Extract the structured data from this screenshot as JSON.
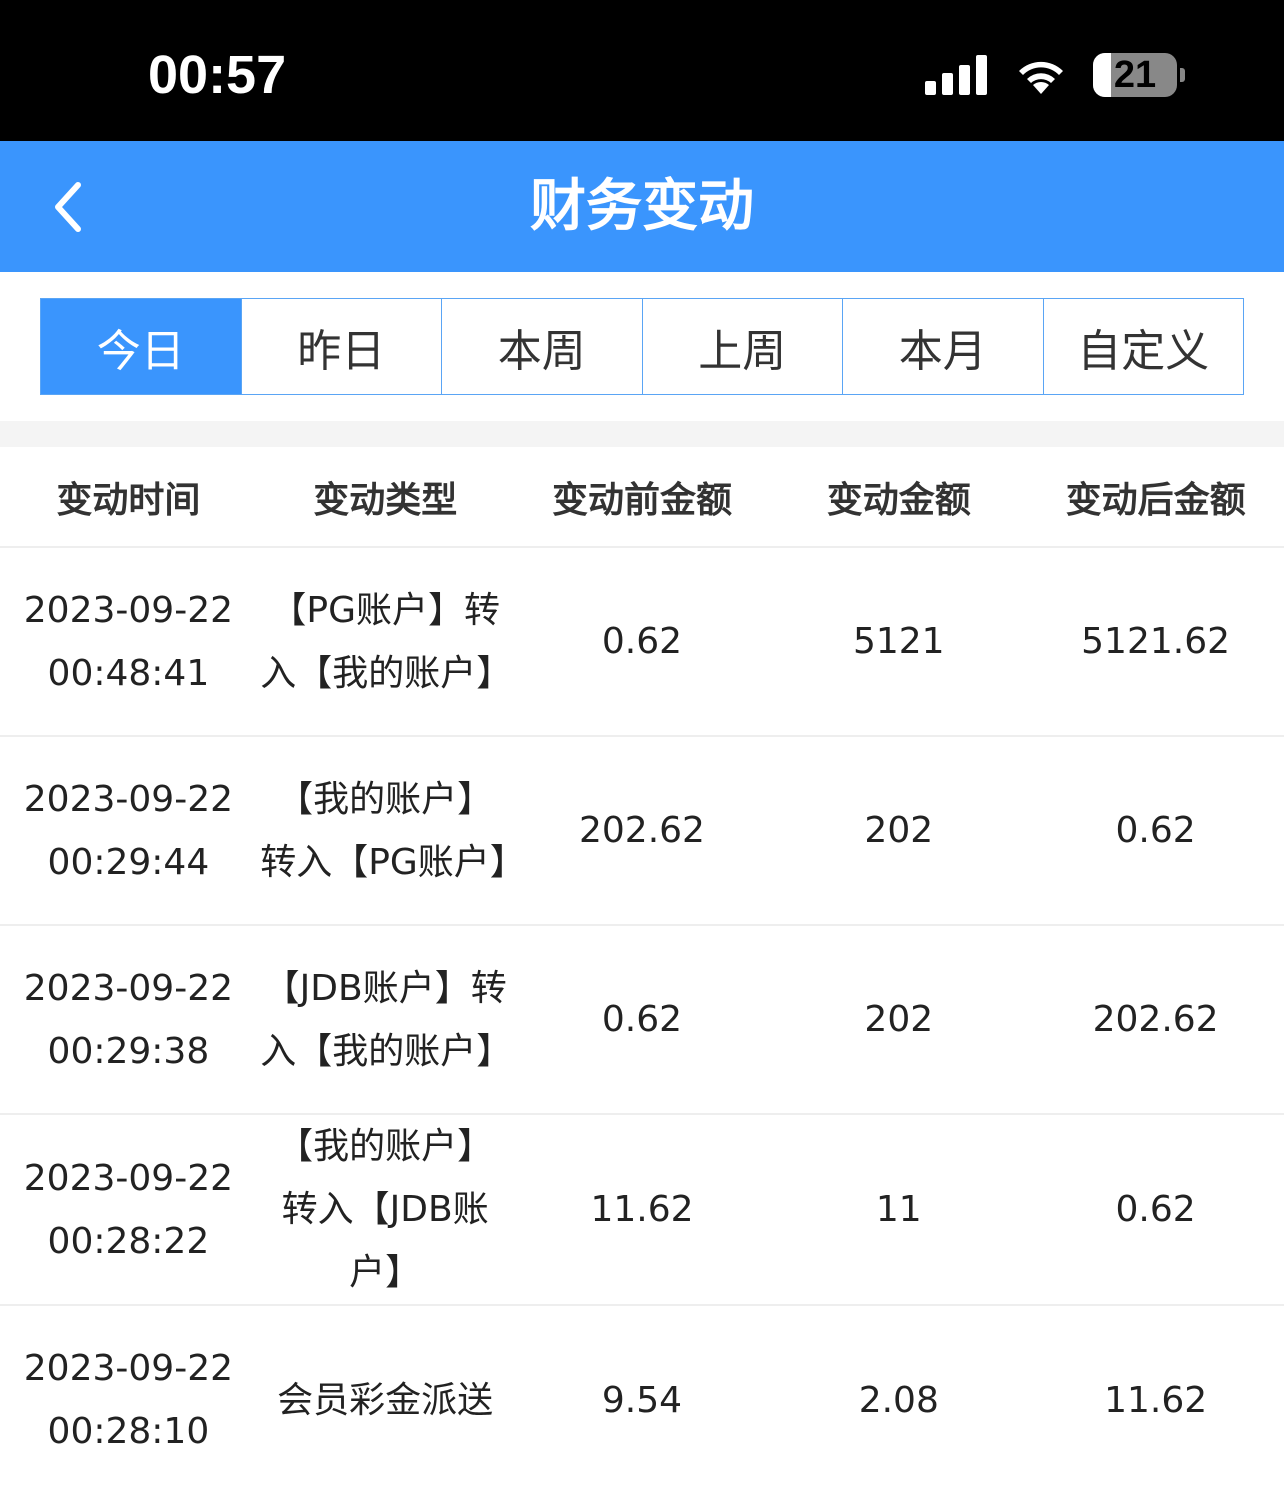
{
  "status_bar": {
    "time": "00:57",
    "battery": "21",
    "battery_level": 0.21
  },
  "header": {
    "title": "财务变动",
    "back_icon": "chevron-left-icon"
  },
  "tabs": [
    {
      "label": "今日",
      "active": true
    },
    {
      "label": "昨日"
    },
    {
      "label": "本周"
    },
    {
      "label": "上周"
    },
    {
      "label": "本月"
    },
    {
      "label": "自定义"
    }
  ],
  "table": {
    "columns": [
      "变动时间",
      "变动类型",
      "变动前金额",
      "变动金额",
      "变动后金额"
    ],
    "rows": [
      {
        "date": "2023-09-22",
        "time": "00:48:41",
        "type": "【PG账户】转入【我的账户】",
        "before": "0.62",
        "amount": "5121",
        "after": "5121.62"
      },
      {
        "date": "2023-09-22",
        "time": "00:29:44",
        "type": "【我的账户】转入【PG账户】",
        "before": "202.62",
        "amount": "202",
        "after": "0.62"
      },
      {
        "date": "2023-09-22",
        "time": "00:29:38",
        "type": "【JDB账户】转入【我的账户】",
        "before": "0.62",
        "amount": "202",
        "after": "202.62"
      },
      {
        "date": "2023-09-22",
        "time": "00:28:22",
        "type": "【我的账户】转入【JDB账户】",
        "before": "11.62",
        "amount": "11",
        "after": "0.62"
      },
      {
        "date": "2023-09-22",
        "time": "00:28:10",
        "type": "会员彩金派送",
        "before": "9.54",
        "amount": "2.08",
        "after": "11.62"
      }
    ]
  },
  "colors": {
    "accent": "#3a95fd"
  }
}
